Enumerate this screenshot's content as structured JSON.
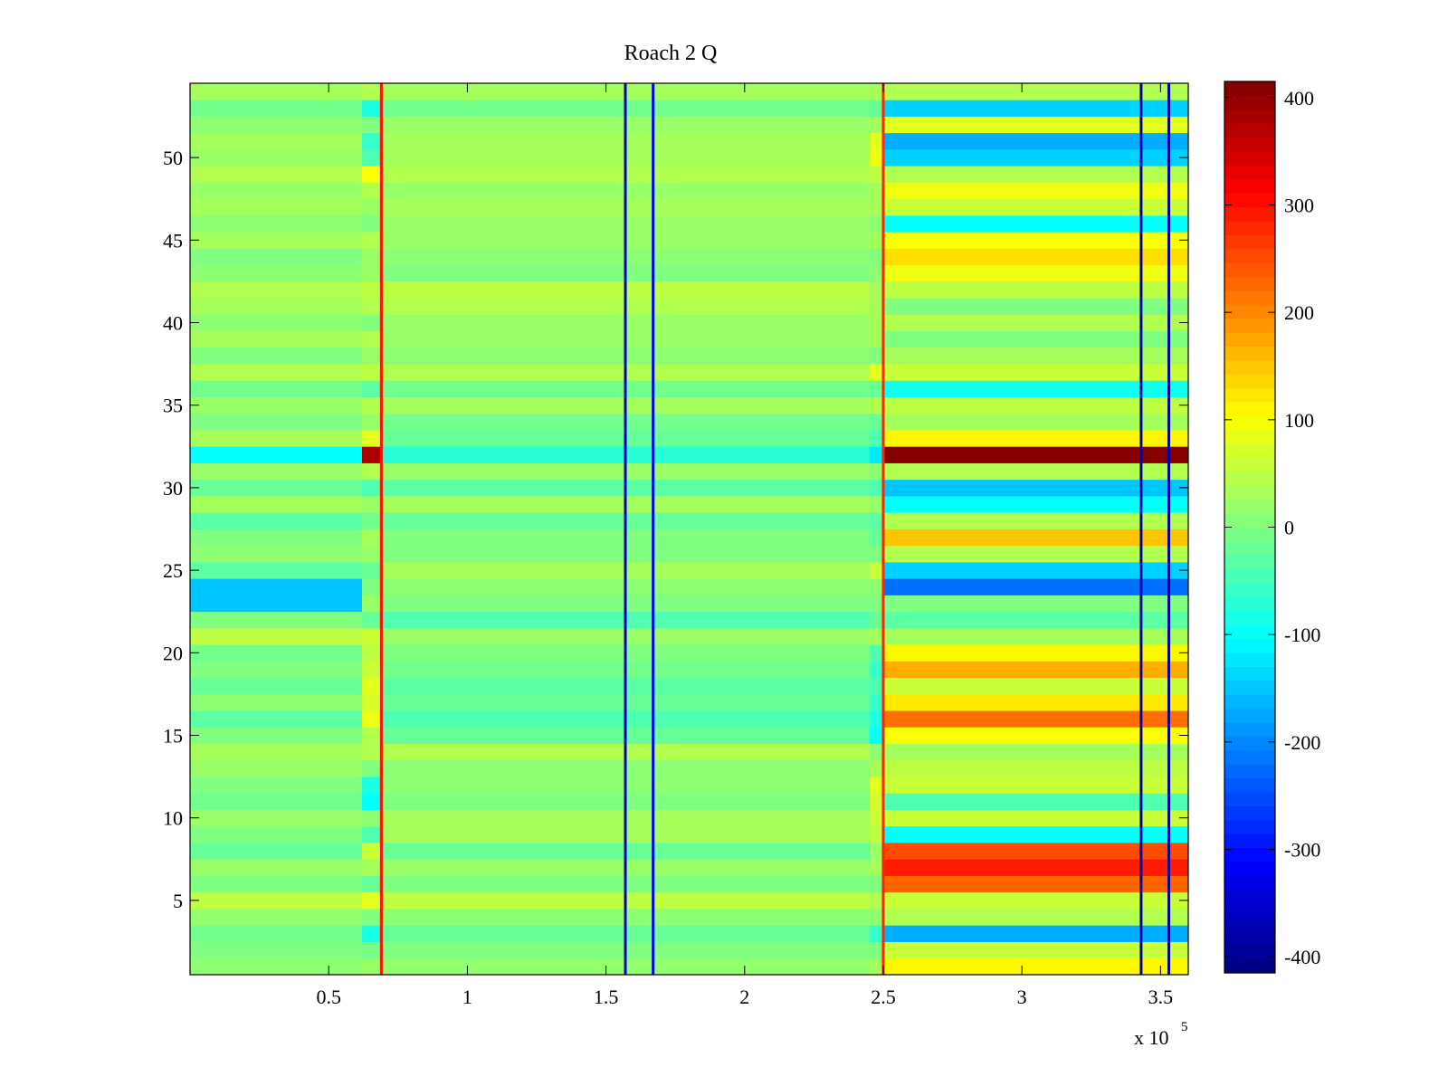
{
  "chart_data": {
    "type": "heatmap",
    "title": "Roach 2 Q",
    "xlabel": "",
    "ylabel": "",
    "colormap": "jet",
    "x_multiplier_label": {
      "base": "x 10",
      "exponent": "5"
    },
    "xlim": [
      0,
      360000
    ],
    "ylim": [
      0.5,
      54.5
    ],
    "clim": [
      -415,
      415
    ],
    "x_ticks": [
      0.5,
      1,
      1.5,
      2,
      2.5,
      3,
      3.5
    ],
    "y_ticks": [
      5,
      10,
      15,
      20,
      25,
      30,
      35,
      40,
      45,
      50
    ],
    "colorbar_ticks": [
      -400,
      -300,
      -200,
      -100,
      0,
      100,
      200,
      300,
      400
    ],
    "x_segments": [
      0,
      62000,
      69000,
      245000,
      250000,
      360000
    ],
    "rows": [
      {
        "row": 1,
        "values": [
          10,
          20,
          15,
          30,
          110
        ]
      },
      {
        "row": 2,
        "values": [
          0,
          -5,
          0,
          0,
          60
        ]
      },
      {
        "row": 3,
        "values": [
          -10,
          -80,
          -20,
          -60,
          -170
        ]
      },
      {
        "row": 4,
        "values": [
          15,
          0,
          10,
          10,
          40
        ]
      },
      {
        "row": 5,
        "values": [
          50,
          80,
          50,
          40,
          60
        ]
      },
      {
        "row": 6,
        "values": [
          0,
          -20,
          0,
          0,
          230
        ]
      },
      {
        "row": 7,
        "values": [
          20,
          30,
          20,
          30,
          290
        ]
      },
      {
        "row": 8,
        "values": [
          -20,
          60,
          -20,
          20,
          250
        ]
      },
      {
        "row": 9,
        "values": [
          0,
          -40,
          30,
          50,
          -100
        ]
      },
      {
        "row": 10,
        "values": [
          20,
          10,
          30,
          60,
          60
        ]
      },
      {
        "row": 11,
        "values": [
          -10,
          -100,
          0,
          70,
          -40
        ]
      },
      {
        "row": 12,
        "values": [
          0,
          -80,
          10,
          80,
          60
        ]
      },
      {
        "row": 13,
        "values": [
          20,
          0,
          10,
          30,
          50
        ]
      },
      {
        "row": 14,
        "values": [
          30,
          40,
          40,
          10,
          30
        ]
      },
      {
        "row": 15,
        "values": [
          0,
          40,
          -20,
          -100,
          100
        ]
      },
      {
        "row": 16,
        "values": [
          -30,
          90,
          -40,
          -80,
          220
        ]
      },
      {
        "row": 17,
        "values": [
          10,
          70,
          -20,
          -60,
          120
        ]
      },
      {
        "row": 18,
        "values": [
          -20,
          80,
          -30,
          -40,
          60
        ]
      },
      {
        "row": 19,
        "values": [
          0,
          60,
          -10,
          -60,
          170
        ]
      },
      {
        "row": 20,
        "values": [
          -10,
          50,
          0,
          -40,
          110
        ]
      },
      {
        "row": 21,
        "values": [
          50,
          60,
          20,
          30,
          30
        ]
      },
      {
        "row": 22,
        "values": [
          0,
          -20,
          -40,
          -20,
          -30
        ]
      },
      {
        "row": 23,
        "values": [
          -150,
          20,
          0,
          0,
          0
        ]
      },
      {
        "row": 24,
        "values": [
          -150,
          0,
          10,
          10,
          -220
        ]
      },
      {
        "row": 25,
        "values": [
          -30,
          -20,
          30,
          60,
          -140
        ]
      },
      {
        "row": 26,
        "values": [
          10,
          20,
          0,
          0,
          40
        ]
      },
      {
        "row": 27,
        "values": [
          0,
          30,
          0,
          -20,
          150
        ]
      },
      {
        "row": 28,
        "values": [
          -30,
          -10,
          -20,
          -30,
          40
        ]
      },
      {
        "row": 29,
        "values": [
          30,
          20,
          30,
          20,
          -100
        ]
      },
      {
        "row": 30,
        "values": [
          -20,
          -40,
          -30,
          -40,
          -150
        ]
      },
      {
        "row": 31,
        "values": [
          20,
          40,
          20,
          10,
          40
        ]
      },
      {
        "row": 32,
        "values": [
          -100,
          380,
          -70,
          -120,
          410
        ]
      },
      {
        "row": 33,
        "values": [
          30,
          80,
          -20,
          -40,
          110
        ]
      },
      {
        "row": 34,
        "values": [
          0,
          20,
          -10,
          -20,
          30
        ]
      },
      {
        "row": 35,
        "values": [
          20,
          40,
          30,
          40,
          50
        ]
      },
      {
        "row": 36,
        "values": [
          -10,
          -30,
          -10,
          -20,
          -90
        ]
      },
      {
        "row": 37,
        "values": [
          40,
          50,
          40,
          80,
          60
        ]
      },
      {
        "row": 38,
        "values": [
          0,
          20,
          10,
          0,
          30
        ]
      },
      {
        "row": 39,
        "values": [
          30,
          40,
          20,
          30,
          0
        ]
      },
      {
        "row": 40,
        "values": [
          10,
          0,
          20,
          30,
          40
        ]
      },
      {
        "row": 41,
        "values": [
          30,
          40,
          40,
          30,
          0
        ]
      },
      {
        "row": 42,
        "values": [
          40,
          50,
          50,
          30,
          50
        ]
      },
      {
        "row": 43,
        "values": [
          10,
          20,
          0,
          10,
          90
        ]
      },
      {
        "row": 44,
        "values": [
          0,
          20,
          10,
          0,
          130
        ]
      },
      {
        "row": 45,
        "values": [
          30,
          40,
          20,
          30,
          100
        ]
      },
      {
        "row": 46,
        "values": [
          10,
          0,
          20,
          10,
          -100
        ]
      },
      {
        "row": 47,
        "values": [
          30,
          20,
          30,
          30,
          60
        ]
      },
      {
        "row": 48,
        "values": [
          20,
          40,
          20,
          30,
          90
        ]
      },
      {
        "row": 49,
        "values": [
          40,
          100,
          40,
          50,
          40
        ]
      },
      {
        "row": 50,
        "values": [
          20,
          -40,
          30,
          90,
          -140
        ]
      },
      {
        "row": 51,
        "values": [
          30,
          -60,
          30,
          80,
          -170
        ]
      },
      {
        "row": 52,
        "values": [
          10,
          0,
          20,
          30,
          80
        ]
      },
      {
        "row": 53,
        "values": [
          -10,
          -80,
          -10,
          -20,
          -140
        ]
      },
      {
        "row": 54,
        "values": [
          30,
          40,
          30,
          30,
          40
        ]
      }
    ],
    "vertical_streaks": [
      {
        "x": 69000,
        "values": [
          300
        ]
      },
      {
        "x": 250000,
        "values": [
          280
        ]
      },
      {
        "x": 157000,
        "values": [
          -360
        ]
      },
      {
        "x": 167000,
        "values": [
          -320
        ]
      },
      {
        "x": 343000,
        "values": [
          -380
        ]
      },
      {
        "x": 353000,
        "values": [
          -380
        ]
      }
    ]
  }
}
